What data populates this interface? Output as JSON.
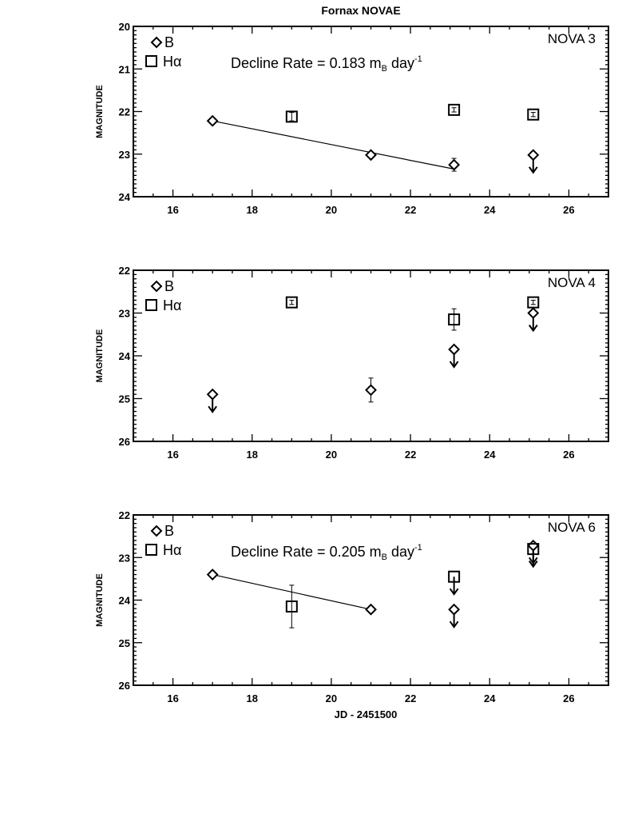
{
  "title": "Fornax NOVAE",
  "xlabel": "JD - 2451500",
  "ylabel": "MAGNITUDE",
  "legend": {
    "b_label": "B",
    "h_label": "Hα"
  },
  "chart_data": [
    {
      "type": "scatter",
      "panel_label": "NOVA 3",
      "decline_rate": {
        "prefix": "Decline Rate = ",
        "value": "0.183",
        "unit_m": "m",
        "unit_sub": "B",
        "unit_day": " day",
        "unit_exp": "-1"
      },
      "xlim": [
        15,
        27
      ],
      "ylim": [
        24,
        20
      ],
      "xticks": [
        16,
        18,
        20,
        22,
        24,
        26
      ],
      "yticks": [
        20,
        21,
        22,
        23,
        24
      ],
      "series": [
        {
          "name": "B",
          "marker": "diamond",
          "points": [
            {
              "x": 17.0,
              "y": 22.22,
              "err": 0.05,
              "upper_limit": false
            },
            {
              "x": 21.0,
              "y": 23.02,
              "err": 0.05,
              "upper_limit": false
            },
            {
              "x": 23.1,
              "y": 23.25,
              "err": 0.15,
              "upper_limit": false
            },
            {
              "x": 25.1,
              "y": 23.02,
              "err": 0,
              "upper_limit": true
            }
          ]
        },
        {
          "name": "Hα",
          "marker": "square",
          "points": [
            {
              "x": 19.0,
              "y": 22.12,
              "err": 0.1,
              "upper_limit": false
            },
            {
              "x": 23.1,
              "y": 21.96,
              "err": 0.05,
              "upper_limit": false
            },
            {
              "x": 25.1,
              "y": 22.07,
              "err": 0.05,
              "upper_limit": false
            }
          ]
        }
      ],
      "fit": {
        "x": [
          17.0,
          23.1
        ],
        "y": [
          22.22,
          23.35
        ]
      }
    },
    {
      "type": "scatter",
      "panel_label": "NOVA 4",
      "xlim": [
        15,
        27
      ],
      "ylim": [
        26,
        22
      ],
      "xticks": [
        16,
        18,
        20,
        22,
        24,
        26
      ],
      "yticks": [
        22,
        23,
        24,
        25,
        26
      ],
      "series": [
        {
          "name": "B",
          "marker": "diamond",
          "points": [
            {
              "x": 17.0,
              "y": 24.9,
              "err": 0,
              "upper_limit": true
            },
            {
              "x": 21.0,
              "y": 24.8,
              "err": 0.28,
              "upper_limit": false
            },
            {
              "x": 23.1,
              "y": 23.85,
              "err": 0,
              "upper_limit": true
            },
            {
              "x": 25.1,
              "y": 23.0,
              "err": 0,
              "upper_limit": true
            }
          ]
        },
        {
          "name": "Hα",
          "marker": "square",
          "points": [
            {
              "x": 19.0,
              "y": 22.75,
              "err": 0.05,
              "upper_limit": false
            },
            {
              "x": 23.1,
              "y": 23.15,
              "err": 0.25,
              "upper_limit": false
            },
            {
              "x": 25.1,
              "y": 22.75,
              "err": 0.05,
              "upper_limit": false
            }
          ]
        }
      ]
    },
    {
      "type": "scatter",
      "panel_label": "NOVA 6",
      "decline_rate": {
        "prefix": "Decline Rate = ",
        "value": "0.205",
        "unit_m": "m",
        "unit_sub": "B",
        "unit_day": " day",
        "unit_exp": "-1"
      },
      "xlim": [
        15,
        27
      ],
      "ylim": [
        26,
        22
      ],
      "xticks": [
        16,
        18,
        20,
        22,
        24,
        26
      ],
      "yticks": [
        22,
        23,
        24,
        25,
        26
      ],
      "series": [
        {
          "name": "B",
          "marker": "diamond",
          "points": [
            {
              "x": 17.0,
              "y": 23.4,
              "err": 0.03,
              "upper_limit": false
            },
            {
              "x": 21.0,
              "y": 24.22,
              "err": 0.03,
              "upper_limit": false
            },
            {
              "x": 23.1,
              "y": 24.22,
              "err": 0,
              "upper_limit": true
            },
            {
              "x": 25.1,
              "y": 22.72,
              "err": 0,
              "upper_limit": true
            }
          ]
        },
        {
          "name": "Hα",
          "marker": "square",
          "points": [
            {
              "x": 19.0,
              "y": 24.15,
              "err": 0.5,
              "upper_limit": false
            },
            {
              "x": 23.1,
              "y": 23.45,
              "err": 0,
              "upper_limit": true
            },
            {
              "x": 25.1,
              "y": 22.8,
              "err": 0,
              "upper_limit": true
            }
          ]
        }
      ],
      "fit": {
        "x": [
          17.0,
          21.0
        ],
        "y": [
          23.4,
          24.22
        ]
      }
    }
  ]
}
